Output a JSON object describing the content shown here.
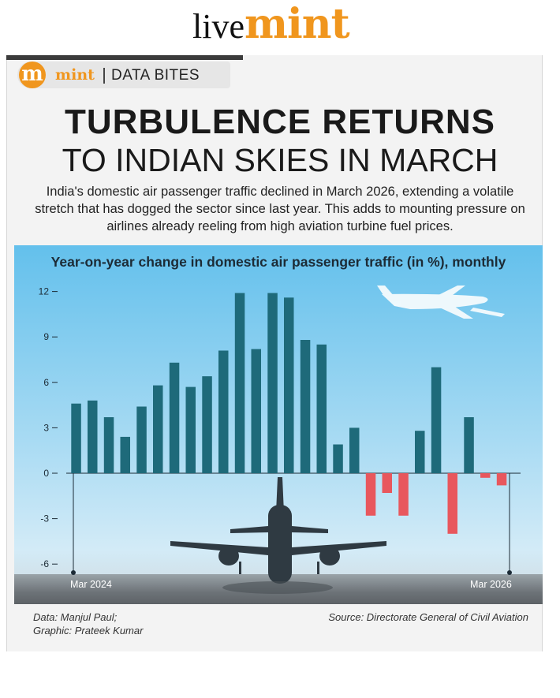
{
  "masthead": {
    "live": "live",
    "mint": "mint"
  },
  "badge": {
    "logo": "m",
    "brand": "mint",
    "label": "DATA BITES"
  },
  "headline": {
    "line1": "TURBULENCE RETURNS",
    "line2": "TO INDIAN SKIES IN MARCH"
  },
  "dek": "India's domestic air passenger traffic declined in March 2026, extending a volatile stretch that has dogged the sector since last year. This adds to mounting pressure on airlines already reeling from high aviation turbine fuel prices.",
  "credits": {
    "data": "Data: Manjul Paul;",
    "graphic": "Graphic: Prateek Kumar",
    "source": "Source: Directorate General of Civil Aviation"
  },
  "colors": {
    "positive": "#1e6a7a",
    "negative": "#e8575d",
    "accent": "#f0961e"
  },
  "chart_data": {
    "type": "bar",
    "title": "Year-on-year change in domestic air passenger traffic (in %), monthly",
    "xlabel": "",
    "ylabel": "",
    "x_start_label": "Mar 2024",
    "x_end_label": "Mar 2026",
    "ylim": [
      -6,
      12
    ],
    "yticks": [
      "12",
      "9",
      "6",
      "3",
      "0",
      "-3",
      "-6"
    ],
    "ytick_values": [
      12,
      9,
      6,
      3,
      0,
      -3,
      -6
    ],
    "values": [
      4.6,
      4.8,
      3.7,
      2.4,
      4.4,
      5.8,
      7.3,
      5.7,
      6.4,
      8.1,
      11.9,
      8.2,
      11.9,
      11.6,
      8.8,
      8.5,
      1.9,
      3.0,
      -2.8,
      -1.3,
      -2.8,
      2.8,
      7.0,
      -4.0,
      3.7,
      -0.3,
      -0.8
    ]
  }
}
